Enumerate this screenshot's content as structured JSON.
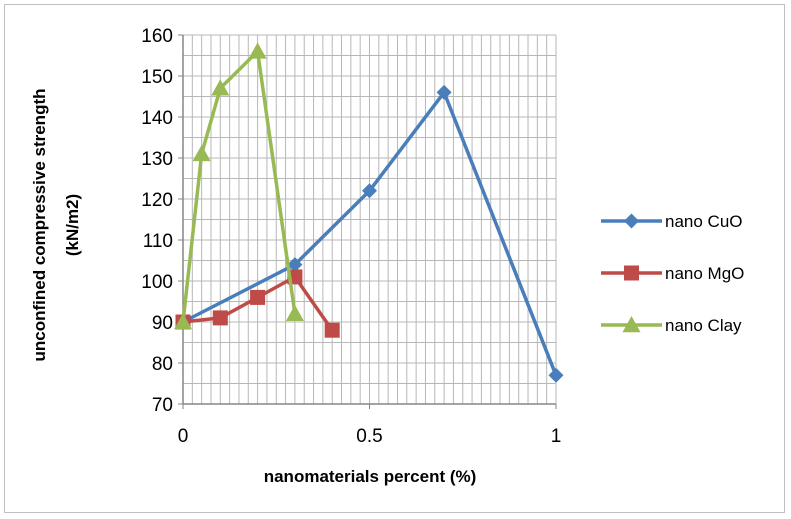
{
  "chart_data": {
    "type": "line",
    "title": "",
    "xlabel": "nanomaterials percent (%)",
    "ylabel_line1": "unconfined compressive strength",
    "ylabel_line2": "(kN/m2)",
    "xlim": [
      0,
      1
    ],
    "ylim": [
      70,
      160
    ],
    "x_ticks": [
      0,
      0.5,
      1
    ],
    "x_tick_labels": [
      "0",
      "0.5",
      "1"
    ],
    "y_ticks": [
      70,
      80,
      90,
      100,
      110,
      120,
      130,
      140,
      150,
      160
    ],
    "y_tick_labels": [
      "70",
      "80",
      "90",
      "100",
      "110",
      "120",
      "130",
      "140",
      "150",
      "160"
    ],
    "grid": true,
    "legend_position": "right",
    "series": [
      {
        "name": "nano CuO",
        "color": "#4a7ebb",
        "marker": "diamond",
        "x": [
          0,
          0.3,
          0.5,
          0.7,
          1
        ],
        "y": [
          90,
          104,
          122,
          146,
          77
        ]
      },
      {
        "name": "nano MgO",
        "color": "#be4b48",
        "marker": "square",
        "x": [
          0,
          0.1,
          0.2,
          0.3,
          0.4
        ],
        "y": [
          90,
          91,
          96,
          101,
          88
        ]
      },
      {
        "name": "nano Clay",
        "color": "#98b954",
        "marker": "triangle",
        "x": [
          0,
          0.05,
          0.1,
          0.2,
          0.3
        ],
        "y": [
          90,
          131,
          147,
          156,
          92
        ]
      }
    ]
  }
}
